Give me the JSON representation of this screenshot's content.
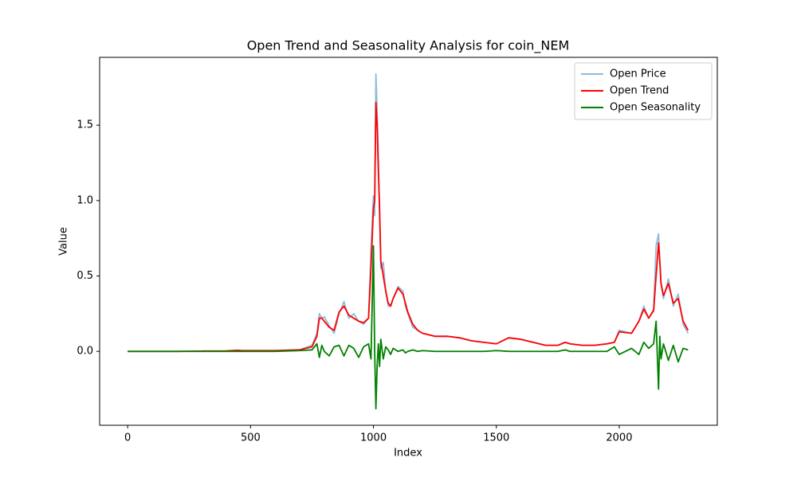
{
  "chart_data": {
    "type": "line",
    "title": "Open Trend and Seasonality Analysis for coin_NEM",
    "x_label": "Index",
    "y_label": "Value",
    "x": [
      0,
      100,
      200,
      300,
      400,
      450,
      460,
      500,
      600,
      700,
      750,
      770,
      780,
      790,
      800,
      820,
      840,
      860,
      880,
      900,
      920,
      940,
      960,
      980,
      990,
      1000,
      1005,
      1010,
      1015,
      1020,
      1025,
      1030,
      1040,
      1050,
      1060,
      1070,
      1080,
      1100,
      1120,
      1130,
      1140,
      1160,
      1180,
      1200,
      1250,
      1300,
      1350,
      1400,
      1450,
      1500,
      1550,
      1600,
      1650,
      1700,
      1750,
      1780,
      1800,
      1850,
      1900,
      1950,
      1980,
      2000,
      2050,
      2080,
      2100,
      2120,
      2140,
      2150,
      2160,
      2165,
      2170,
      2180,
      2200,
      2220,
      2240,
      2260,
      2280
    ],
    "series": [
      {
        "name": "Open Price",
        "color": "#8fbbd9",
        "values": [
          0,
          0,
          0,
          0.002,
          0.003,
          0.008,
          0.006,
          0.005,
          0.005,
          0.01,
          0.04,
          0.12,
          0.25,
          0.22,
          0.23,
          0.17,
          0.12,
          0.25,
          0.33,
          0.22,
          0.25,
          0.2,
          0.18,
          0.22,
          0.68,
          1.03,
          0.9,
          1.84,
          1.6,
          1.3,
          0.9,
          0.55,
          0.59,
          0.4,
          0.3,
          0.3,
          0.35,
          0.43,
          0.4,
          0.3,
          0.25,
          0.16,
          0.14,
          0.12,
          0.1,
          0.1,
          0.09,
          0.07,
          0.06,
          0.05,
          0.09,
          0.08,
          0.06,
          0.04,
          0.04,
          0.06,
          0.05,
          0.04,
          0.04,
          0.05,
          0.06,
          0.14,
          0.12,
          0.2,
          0.3,
          0.22,
          0.28,
          0.7,
          0.78,
          0.6,
          0.45,
          0.35,
          0.48,
          0.3,
          0.38,
          0.18,
          0.12
        ]
      },
      {
        "name": "Open Trend",
        "color": "#ff0000",
        "values": [
          0,
          0,
          0,
          0.002,
          0.003,
          0.007,
          0.006,
          0.005,
          0.005,
          0.01,
          0.03,
          0.1,
          0.22,
          0.22,
          0.2,
          0.16,
          0.14,
          0.26,
          0.3,
          0.24,
          0.22,
          0.2,
          0.19,
          0.22,
          0.55,
          0.95,
          1.0,
          1.65,
          1.5,
          1.2,
          0.95,
          0.6,
          0.5,
          0.4,
          0.32,
          0.3,
          0.35,
          0.42,
          0.38,
          0.32,
          0.26,
          0.18,
          0.14,
          0.12,
          0.1,
          0.1,
          0.09,
          0.07,
          0.06,
          0.05,
          0.09,
          0.08,
          0.06,
          0.04,
          0.04,
          0.06,
          0.05,
          0.04,
          0.04,
          0.05,
          0.06,
          0.13,
          0.12,
          0.2,
          0.28,
          0.22,
          0.27,
          0.5,
          0.72,
          0.6,
          0.45,
          0.37,
          0.45,
          0.32,
          0.35,
          0.2,
          0.14
        ]
      },
      {
        "name": "Open Seasonality",
        "color": "#008000",
        "values": [
          0,
          0,
          0,
          0,
          0,
          0,
          0,
          0,
          0,
          0.005,
          0.01,
          0.05,
          -0.04,
          0.04,
          0.0,
          -0.03,
          0.03,
          0.04,
          -0.03,
          0.04,
          0.02,
          -0.04,
          0.03,
          0.05,
          -0.05,
          0.7,
          0.0,
          -0.38,
          -0.1,
          0.05,
          -0.1,
          0.08,
          -0.05,
          0.03,
          0.01,
          -0.02,
          0.02,
          0.0,
          0.01,
          -0.01,
          0.0,
          0.01,
          0,
          0.005,
          0.0,
          0,
          0,
          0,
          0,
          0.005,
          0,
          0,
          0,
          0,
          0,
          0.01,
          0,
          0,
          0,
          0,
          0.03,
          -0.02,
          0.02,
          -0.02,
          0.06,
          0.02,
          0.05,
          0.2,
          -0.25,
          0.1,
          -0.05,
          0.05,
          -0.06,
          0.04,
          -0.07,
          0.02,
          0.01
        ]
      }
    ],
    "xlim": [
      -114,
      2399
    ],
    "ylim": [
      -0.49,
      1.95
    ],
    "xticks": [
      0,
      500,
      1000,
      1500,
      2000
    ],
    "yticks": [
      {
        "value": 0,
        "label": "0.0"
      },
      {
        "value": 0.5,
        "label": "0.5"
      },
      {
        "value": 1,
        "label": "1.0"
      },
      {
        "value": 1.5,
        "label": "1.5"
      }
    ],
    "legend": "upper right"
  }
}
